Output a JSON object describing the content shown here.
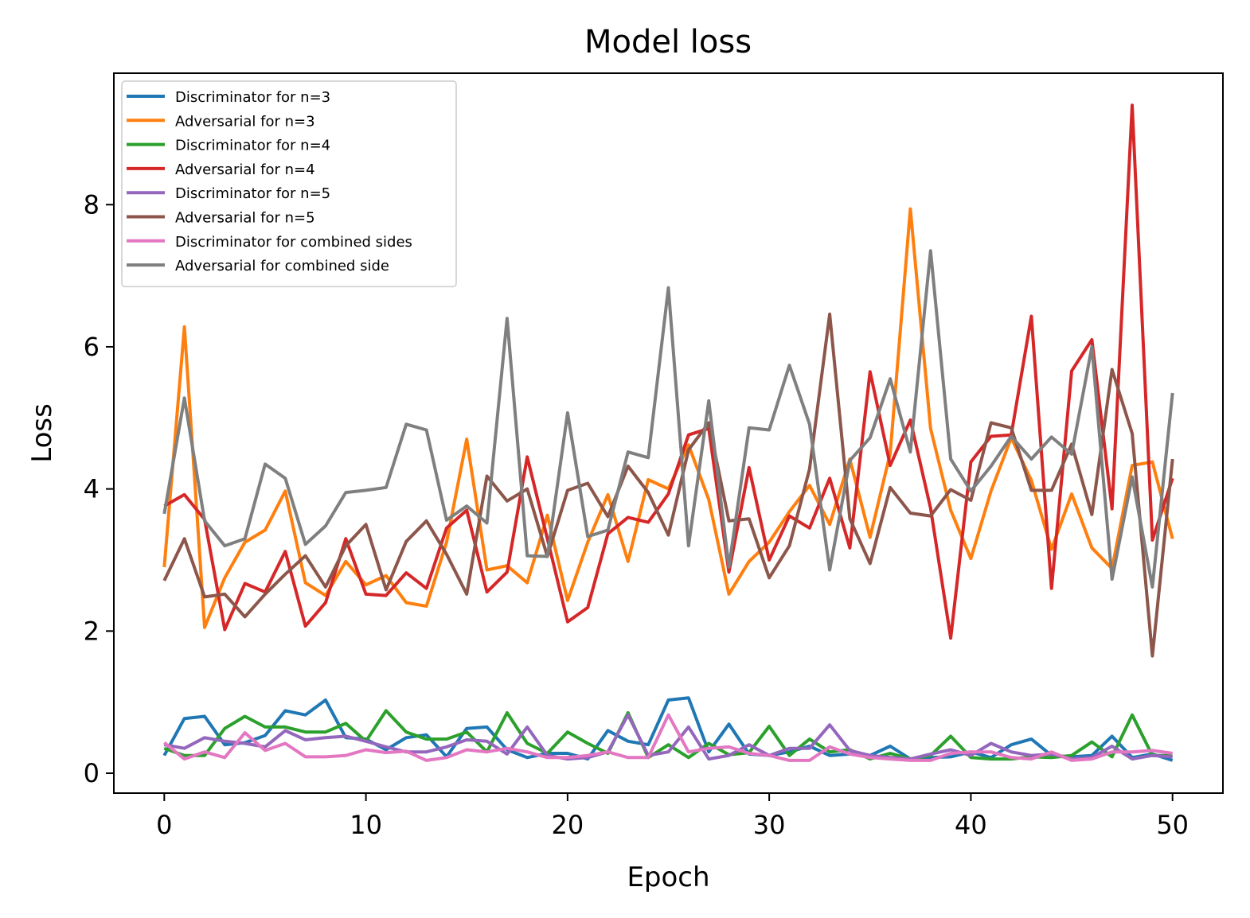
{
  "chart_data": {
    "type": "line",
    "title": "Model loss",
    "xlabel": "Epoch",
    "ylabel": "Loss",
    "xlim": [
      -2.5,
      52.5
    ],
    "ylim": [
      -0.28,
      9.85
    ],
    "xticks": [
      0,
      10,
      20,
      30,
      40,
      50
    ],
    "yticks": [
      0,
      2,
      4,
      6,
      8
    ],
    "legend_position": "upper-left",
    "grid": false,
    "x": [
      0,
      1,
      2,
      3,
      4,
      5,
      6,
      7,
      8,
      9,
      10,
      11,
      12,
      13,
      14,
      15,
      16,
      17,
      18,
      19,
      20,
      21,
      22,
      23,
      24,
      25,
      26,
      27,
      28,
      29,
      30,
      31,
      32,
      33,
      34,
      35,
      36,
      37,
      38,
      39,
      40,
      41,
      42,
      43,
      44,
      45,
      46,
      47,
      48,
      49,
      50
    ],
    "series": [
      {
        "name": "Discriminator for n=3",
        "color": "#1f77b4",
        "values": [
          0.25,
          0.77,
          0.8,
          0.4,
          0.43,
          0.53,
          0.88,
          0.82,
          1.03,
          0.5,
          0.48,
          0.33,
          0.5,
          0.54,
          0.23,
          0.63,
          0.65,
          0.33,
          0.22,
          0.28,
          0.28,
          0.2,
          0.6,
          0.45,
          0.4,
          1.03,
          1.06,
          0.3,
          0.69,
          0.27,
          0.25,
          0.3,
          0.38,
          0.25,
          0.27,
          0.25,
          0.38,
          0.2,
          0.22,
          0.23,
          0.3,
          0.22,
          0.4,
          0.48,
          0.25,
          0.23,
          0.25,
          0.52,
          0.22,
          0.27,
          0.18
        ]
      },
      {
        "name": "Adversarial for n=3",
        "color": "#ff7f0e",
        "values": [
          2.9,
          6.28,
          2.05,
          2.75,
          3.25,
          3.42,
          3.97,
          2.68,
          2.5,
          2.98,
          2.65,
          2.78,
          2.4,
          2.35,
          3.25,
          4.7,
          2.86,
          2.92,
          2.68,
          3.63,
          2.43,
          3.25,
          3.92,
          2.98,
          4.13,
          4.0,
          4.62,
          3.85,
          2.52,
          2.98,
          3.25,
          3.68,
          4.05,
          3.5,
          4.42,
          3.32,
          4.5,
          7.94,
          4.85,
          3.7,
          3.02,
          3.97,
          4.72,
          4.12,
          3.15,
          3.93,
          3.17,
          2.88,
          4.33,
          4.38,
          3.3
        ]
      },
      {
        "name": "Discriminator for n=4",
        "color": "#2ca02c",
        "values": [
          0.35,
          0.25,
          0.25,
          0.63,
          0.8,
          0.65,
          0.65,
          0.58,
          0.58,
          0.7,
          0.45,
          0.88,
          0.58,
          0.48,
          0.48,
          0.58,
          0.3,
          0.85,
          0.42,
          0.28,
          0.58,
          0.42,
          0.28,
          0.85,
          0.22,
          0.4,
          0.22,
          0.42,
          0.26,
          0.29,
          0.66,
          0.25,
          0.48,
          0.3,
          0.33,
          0.2,
          0.28,
          0.2,
          0.25,
          0.52,
          0.22,
          0.2,
          0.2,
          0.23,
          0.22,
          0.25,
          0.44,
          0.23,
          0.82,
          0.25,
          0.25
        ]
      },
      {
        "name": "Adversarial for n=4",
        "color": "#d62728",
        "values": [
          3.76,
          3.92,
          3.57,
          2.02,
          2.67,
          2.55,
          3.12,
          2.07,
          2.4,
          3.3,
          2.52,
          2.5,
          2.82,
          2.6,
          3.45,
          3.7,
          2.55,
          2.83,
          4.45,
          3.3,
          2.13,
          2.33,
          3.37,
          3.6,
          3.53,
          3.93,
          4.76,
          4.85,
          2.83,
          4.3,
          3.0,
          3.62,
          3.45,
          4.15,
          3.17,
          5.65,
          4.33,
          4.97,
          3.73,
          1.9,
          4.38,
          4.74,
          4.76,
          6.43,
          2.6,
          5.66,
          6.1,
          3.72,
          9.4,
          3.28,
          4.15
        ]
      },
      {
        "name": "Discriminator for n=5",
        "color": "#9467bd",
        "values": [
          0.4,
          0.35,
          0.5,
          0.45,
          0.42,
          0.37,
          0.6,
          0.47,
          0.5,
          0.52,
          0.45,
          0.37,
          0.3,
          0.3,
          0.37,
          0.47,
          0.45,
          0.27,
          0.65,
          0.25,
          0.2,
          0.22,
          0.3,
          0.82,
          0.25,
          0.3,
          0.65,
          0.2,
          0.25,
          0.4,
          0.25,
          0.35,
          0.35,
          0.68,
          0.32,
          0.25,
          0.22,
          0.2,
          0.27,
          0.33,
          0.25,
          0.42,
          0.3,
          0.25,
          0.27,
          0.2,
          0.22,
          0.38,
          0.2,
          0.25,
          0.23
        ]
      },
      {
        "name": "Adversarial for n=5",
        "color": "#8c564b",
        "values": [
          2.71,
          3.3,
          2.48,
          2.52,
          2.2,
          2.52,
          2.8,
          3.06,
          2.62,
          3.2,
          3.5,
          2.58,
          3.26,
          3.55,
          3.08,
          2.52,
          4.18,
          3.83,
          4.0,
          3.05,
          3.98,
          4.08,
          3.61,
          4.32,
          3.95,
          3.35,
          4.55,
          4.93,
          3.55,
          3.58,
          2.75,
          3.2,
          4.28,
          6.46,
          3.58,
          2.95,
          4.02,
          3.66,
          3.62,
          3.99,
          3.84,
          4.93,
          4.86,
          3.98,
          3.98,
          4.63,
          3.64,
          5.68,
          4.78,
          1.65,
          4.42
        ]
      },
      {
        "name": "Discriminator for combined sides",
        "color": "#e377c2",
        "values": [
          0.43,
          0.2,
          0.3,
          0.22,
          0.57,
          0.32,
          0.42,
          0.23,
          0.23,
          0.25,
          0.33,
          0.29,
          0.31,
          0.18,
          0.22,
          0.33,
          0.3,
          0.35,
          0.3,
          0.22,
          0.22,
          0.25,
          0.3,
          0.22,
          0.22,
          0.82,
          0.3,
          0.35,
          0.37,
          0.28,
          0.25,
          0.18,
          0.18,
          0.37,
          0.27,
          0.22,
          0.2,
          0.18,
          0.18,
          0.28,
          0.3,
          0.3,
          0.22,
          0.2,
          0.3,
          0.18,
          0.2,
          0.3,
          0.3,
          0.32,
          0.28
        ]
      },
      {
        "name": "Adversarial for combined side",
        "color": "#7f7f7f",
        "values": [
          3.65,
          5.28,
          3.55,
          3.2,
          3.3,
          4.35,
          4.15,
          3.22,
          3.48,
          3.95,
          3.98,
          4.02,
          4.91,
          4.83,
          3.56,
          3.76,
          3.52,
          6.4,
          3.06,
          3.05,
          5.07,
          3.33,
          3.42,
          4.52,
          4.44,
          6.83,
          3.2,
          5.24,
          2.9,
          4.86,
          4.83,
          5.74,
          4.91,
          2.86,
          4.4,
          4.72,
          5.55,
          4.52,
          7.35,
          4.42,
          3.97,
          4.32,
          4.74,
          4.42,
          4.73,
          4.49,
          6.0,
          2.73,
          4.17,
          2.62,
          5.35
        ]
      }
    ]
  }
}
